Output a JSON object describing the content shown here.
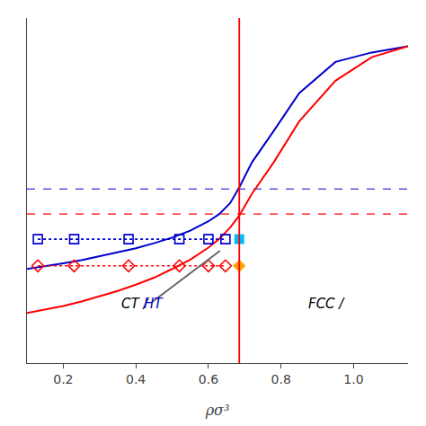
{
  "chart_data": {
    "type": "line",
    "xlabel": "ρσ³",
    "xlim": [
      0.1,
      1.15
    ],
    "xticks": [
      0.2,
      0.4,
      0.6,
      0.8,
      {
        "value": 1.0,
        "label": "1.0"
      }
    ],
    "ylim": [
      0.0,
      1.1
    ],
    "tick_labels": "x",
    "grid": false,
    "series": [
      {
        "type": "line",
        "color": "#0000cd",
        "line_style": "solid",
        "marker": "none",
        "x": [
          0.1,
          0.15,
          0.2,
          0.25,
          0.3,
          0.35,
          0.4,
          0.45,
          0.5,
          0.55,
          0.6,
          0.63,
          0.66,
          0.685,
          0.72,
          0.78,
          0.85,
          0.95,
          1.05,
          1.15
        ],
        "values": [
          0.3,
          0.308,
          0.318,
          0.328,
          0.34,
          0.352,
          0.366,
          0.382,
          0.4,
          0.422,
          0.452,
          0.475,
          0.51,
          0.56,
          0.64,
          0.74,
          0.86,
          0.96,
          0.99,
          1.01
        ]
      },
      {
        "type": "line",
        "color": "#ff0000",
        "line_style": "solid",
        "marker": "none",
        "x": [
          0.1,
          0.15,
          0.2,
          0.25,
          0.3,
          0.35,
          0.4,
          0.45,
          0.5,
          0.55,
          0.6,
          0.63,
          0.66,
          0.685,
          0.72,
          0.78,
          0.85,
          0.95,
          1.05,
          1.15
        ],
        "values": [
          0.16,
          0.17,
          0.182,
          0.196,
          0.212,
          0.23,
          0.25,
          0.272,
          0.3,
          0.33,
          0.368,
          0.396,
          0.432,
          0.47,
          0.54,
          0.64,
          0.77,
          0.9,
          0.975,
          1.01
        ]
      },
      {
        "type": "hline",
        "color": "#0000cd",
        "line_style": "dashed",
        "values": [
          0.555
        ]
      },
      {
        "type": "hline",
        "color": "#ff0000",
        "line_style": "dashed",
        "values": [
          0.475
        ]
      },
      {
        "type": "vline",
        "color": "#ff0000",
        "line_style": "solid",
        "x": [
          0.685
        ]
      },
      {
        "type": "line",
        "color": "#0000cd",
        "line_style": "dotted",
        "marker": "square-open",
        "x": [
          0.13,
          0.23,
          0.38,
          0.52,
          0.6,
          0.647
        ],
        "values": [
          0.395,
          0.395,
          0.395,
          0.395,
          0.395,
          0.395
        ]
      },
      {
        "type": "scatter",
        "color": "#00bfff",
        "line_style": "none",
        "marker": "square",
        "x": [
          0.685
        ],
        "values": [
          0.395
        ]
      },
      {
        "type": "line",
        "color": "#ff0000",
        "line_style": "dotted",
        "marker": "diamond-open",
        "x": [
          0.13,
          0.23,
          0.38,
          0.52,
          0.6,
          0.647
        ],
        "values": [
          0.31,
          0.31,
          0.31,
          0.31,
          0.31,
          0.31
        ]
      },
      {
        "type": "scatter",
        "color": "#FFA500",
        "line_style": "none",
        "marker": "diamond",
        "x": [
          0.685
        ],
        "values": [
          0.31
        ]
      },
      {
        "type": "line",
        "color": "#666666",
        "line_style": "solid",
        "marker": "none",
        "x": [
          0.445,
          0.632
        ],
        "values": [
          0.195,
          0.358
        ]
      }
    ],
    "annotations": [
      {
        "text": "CT / ",
        "x": 0.355,
        "y": 0.19,
        "color": "#000000"
      },
      {
        "text": "HT",
        "x": 0.417,
        "y": 0.19,
        "color": "#0000cd"
      },
      {
        "text": "FCC /",
        "x": 0.87,
        "y": 0.19,
        "color": "#000000"
      }
    ]
  }
}
